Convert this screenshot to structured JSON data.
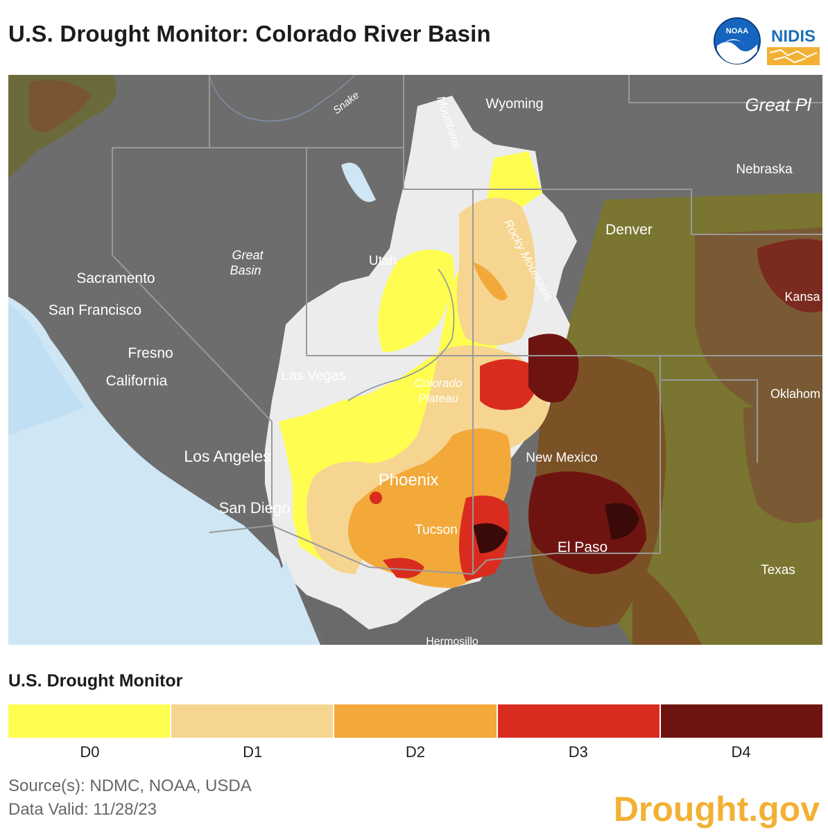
{
  "title": "U.S. Drought Monitor: Colorado River Basin",
  "logos": {
    "noaa": "NOAA",
    "nidis": "NIDIS"
  },
  "map": {
    "labels": {
      "wyoming": "Wyoming",
      "great_plains": "Great Pl",
      "nebraska": "Nebraska",
      "denver": "Denver",
      "kansas": "Kansa",
      "utah": "Utah",
      "great_basin_1": "Great",
      "great_basin_2": "Basin",
      "sacramento": "Sacramento",
      "san_francisco": "San Francisco",
      "fresno": "Fresno",
      "california": "California",
      "las_vegas": "Las Vegas",
      "colorado_plateau_1": "Colorado",
      "colorado_plateau_2": "Plateau",
      "oklahoma": "Oklahom",
      "new_mexico": "New Mexico",
      "los_angeles": "Los Angeles",
      "phoenix": "Phoenix",
      "san_diego": "San Diego",
      "tucson": "Tucson",
      "el_paso": "El Paso",
      "texas": "Texas",
      "snake": "Snake",
      "mountains_top": "Mountains",
      "rocky_mountains": "Rocky Mountains",
      "hermosillo": "Hermosillo"
    }
  },
  "legend": {
    "title": "U.S. Drought Monitor",
    "categories": [
      {
        "label": "D0",
        "color": "#fffe50"
      },
      {
        "label": "D1",
        "color": "#f6d590"
      },
      {
        "label": "D2",
        "color": "#f2a93a"
      },
      {
        "label": "D3",
        "color": "#d92c1f"
      },
      {
        "label": "D4",
        "color": "#6e1410"
      }
    ]
  },
  "footer": {
    "source": "Source(s): NDMC, NOAA, USDA",
    "valid": "Data Valid: 11/28/23",
    "brand": "Drought.gov"
  }
}
